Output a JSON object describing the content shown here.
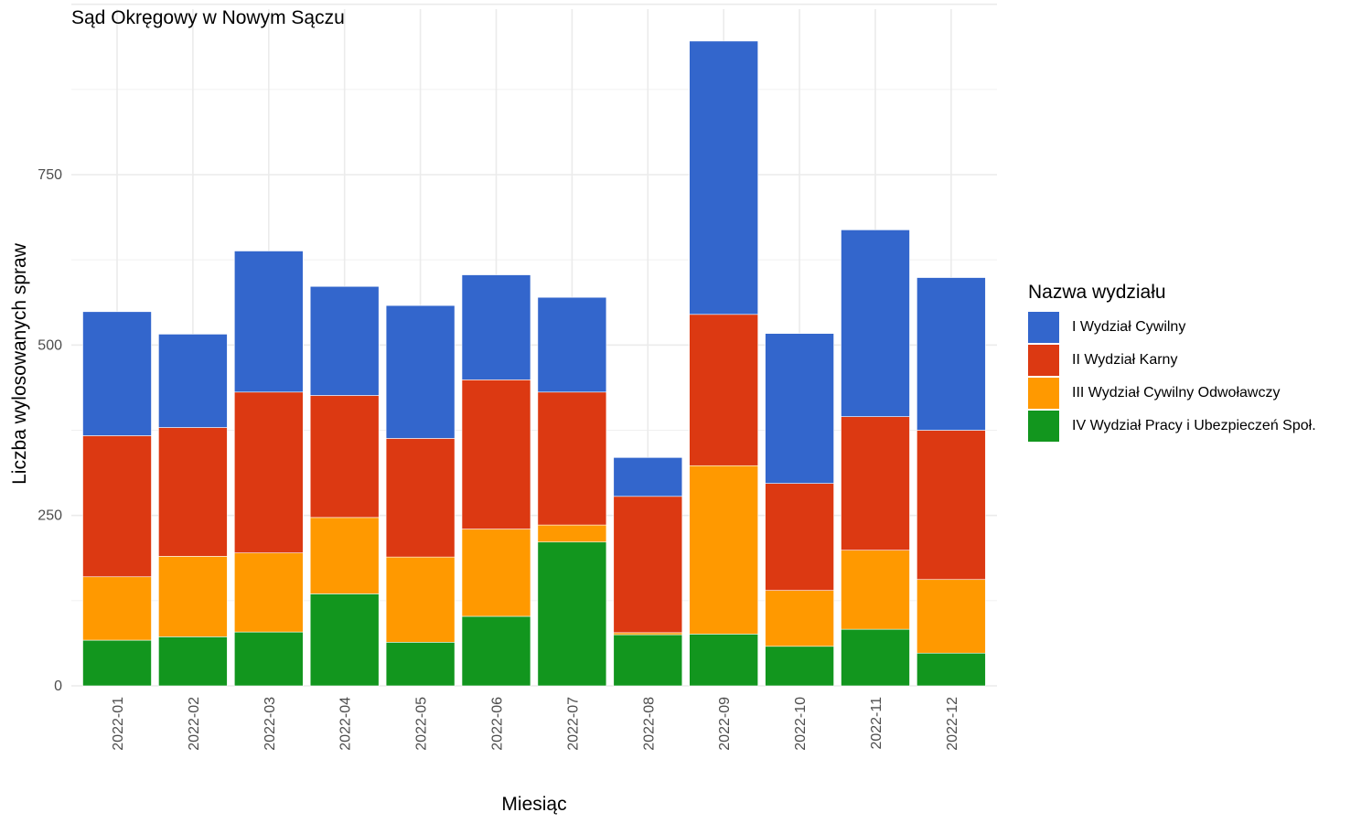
{
  "chart_data": {
    "type": "bar",
    "stacked": true,
    "title": "Sąd Okręgowy w Nowym Sączu",
    "xlabel": "Miesiąc",
    "ylabel": "Liczba wylosowanych spraw",
    "ylim": [
      0,
      950
    ],
    "yticks": [
      0,
      250,
      500,
      750
    ],
    "grid": true,
    "legend_position": "right",
    "legend_title": "Nazwa wydziału",
    "categories": [
      "2022-01",
      "2022-02",
      "2022-03",
      "2022-04",
      "2022-05",
      "2022-06",
      "2022-07",
      "2022-08",
      "2022-09",
      "2022-10",
      "2022-11",
      "2022-12"
    ],
    "series": [
      {
        "name": "IV Wydział Pracy i Ubezpieczeń Społ.",
        "color": "#12961e",
        "values": [
          67,
          72,
          79,
          135,
          64,
          102,
          211,
          75,
          76,
          58,
          83,
          48
        ]
      },
      {
        "name": "III Wydział Cywilny Odwoławczy",
        "color": "#ff9900",
        "values": [
          93,
          118,
          116,
          112,
          125,
          128,
          25,
          3,
          247,
          82,
          116,
          108
        ]
      },
      {
        "name": "II Wydział Karny",
        "color": "#dc3912",
        "values": [
          207,
          189,
          236,
          179,
          174,
          219,
          195,
          200,
          222,
          157,
          196,
          219
        ]
      },
      {
        "name": "I Wydział Cywilny",
        "color": "#3366cc",
        "values": [
          182,
          137,
          207,
          160,
          195,
          154,
          139,
          57,
          401,
          220,
          274,
          224
        ]
      }
    ],
    "legend_order": [
      "I Wydział Cywilny",
      "II Wydział Karny",
      "III Wydział Cywilny Odwoławczy",
      "IV Wydział Pracy i Ubezpieczeń Społ."
    ]
  }
}
